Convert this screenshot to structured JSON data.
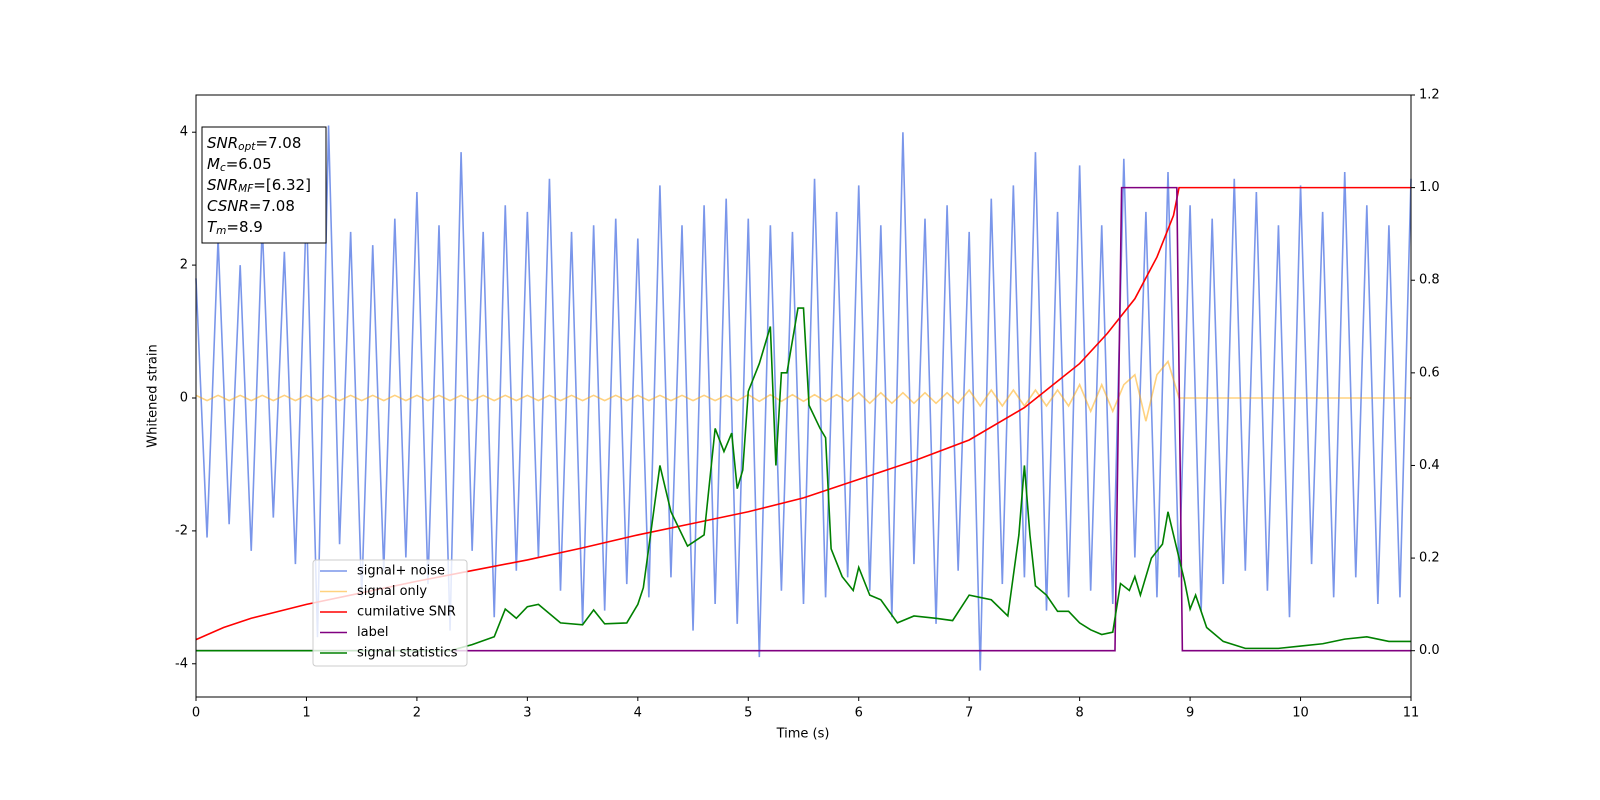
{
  "chart_data": {
    "type": "line",
    "xlabel": "Time (s)",
    "ylabel": "Whitened strain",
    "xlim": [
      0,
      11
    ],
    "xticks": [
      0,
      1,
      2,
      3,
      4,
      5,
      6,
      7,
      8,
      9,
      10,
      11
    ],
    "ylim": [
      -4.5,
      4.56
    ],
    "yticks": [
      -4,
      -2,
      0,
      2,
      4
    ],
    "y2lim": [
      -0.1,
      1.2
    ],
    "y2ticks": [
      {
        "value": 0,
        "label": "0.0"
      },
      0.2,
      0.4,
      0.6,
      0.8,
      {
        "value": 1,
        "label": "1.0"
      },
      1.2
    ],
    "legend": "lower left",
    "annotation": [
      {
        "main": "SNR",
        "sub": "opt",
        "rest": "=7.08"
      },
      {
        "main": "M",
        "sub": "c",
        "rest": "=6.05"
      },
      {
        "main": "SNR",
        "sub": "MF",
        "rest": "=[6.32]"
      },
      {
        "main": "CSNR",
        "sub": null,
        "rest": "=7.08"
      },
      {
        "main": "T",
        "sub": "m",
        "rest": "=8.9"
      }
    ],
    "x": [
      0,
      0.1,
      0.2,
      0.3,
      0.4,
      0.5,
      0.6,
      0.7,
      0.8,
      0.9,
      1,
      1.1,
      1.2,
      1.3,
      1.4,
      1.5,
      1.6,
      1.7,
      1.8,
      1.9,
      2,
      2.1,
      2.2,
      2.3,
      2.4,
      2.5,
      2.6,
      2.7,
      2.8,
      2.9,
      3,
      3.1,
      3.2,
      3.3,
      3.4,
      3.5,
      3.6,
      3.7,
      3.8,
      3.9,
      4,
      4.1,
      4.2,
      4.3,
      4.4,
      4.5,
      4.6,
      4.7,
      4.8,
      4.9,
      5,
      5.1,
      5.2,
      5.3,
      5.4,
      5.5,
      5.6,
      5.7,
      5.8,
      5.9,
      6,
      6.1,
      6.2,
      6.3,
      6.4,
      6.5,
      6.6,
      6.7,
      6.8,
      6.9,
      7,
      7.1,
      7.2,
      7.3,
      7.4,
      7.5,
      7.6,
      7.7,
      7.8,
      7.9,
      8,
      8.1,
      8.2,
      8.3,
      8.4,
      8.5,
      8.6,
      8.7,
      8.8,
      8.9,
      9,
      9.1,
      9.2,
      9.3,
      9.4,
      9.5,
      9.6,
      9.7,
      9.8,
      9.9,
      10,
      10.1,
      10.2,
      10.3,
      10.4,
      10.5,
      10.6,
      10.7,
      10.8,
      10.9,
      11
    ],
    "series": [
      {
        "name": "signal+ noise",
        "color": "#4169e1",
        "alpha": 0.7,
        "values": [
          1.8,
          -2.1,
          2.4,
          -1.9,
          2.0,
          -2.3,
          2.6,
          -1.8,
          2.2,
          -2.5,
          2.9,
          -3.6,
          4.1,
          -2.2,
          2.5,
          -3.0,
          2.3,
          -2.6,
          2.7,
          -2.4,
          3.1,
          -2.8,
          2.6,
          -3.5,
          3.7,
          -2.3,
          2.5,
          -3.3,
          2.9,
          -2.6,
          2.8,
          -2.4,
          3.3,
          -2.9,
          2.5,
          -3.4,
          2.6,
          -3.2,
          2.7,
          -2.8,
          2.4,
          -3.0,
          3.2,
          -2.7,
          2.6,
          -3.5,
          2.9,
          -3.1,
          3.0,
          -3.4,
          2.7,
          -3.9,
          2.6,
          -2.9,
          2.5,
          -3.1,
          3.3,
          -3.0,
          2.8,
          -2.7,
          3.2,
          -2.9,
          2.6,
          -3.3,
          4.0,
          -2.5,
          2.7,
          -3.4,
          2.9,
          -2.6,
          2.5,
          -4.1,
          3.0,
          -2.8,
          3.2,
          -2.7,
          3.7,
          -3.2,
          2.8,
          -3.0,
          3.5,
          -2.9,
          2.6,
          -3.1,
          3.6,
          -2.4,
          2.8,
          -3.0,
          3.4,
          -2.7,
          2.9,
          -3.2,
          2.7,
          -2.8,
          3.3,
          -2.6,
          3.1,
          -2.9,
          2.6,
          -3.3,
          3.2,
          -2.5,
          2.8,
          -3.0,
          3.4,
          -2.7,
          2.9,
          -3.1,
          2.6,
          -3.0,
          3.3
        ]
      },
      {
        "name": "signal only",
        "color": "orange",
        "alpha": 0.5,
        "values": [
          0.04,
          -0.04,
          0.04,
          -0.04,
          0.04,
          -0.04,
          0.04,
          -0.04,
          0.04,
          -0.04,
          0.04,
          -0.04,
          0.04,
          -0.04,
          0.04,
          -0.04,
          0.04,
          -0.04,
          0.04,
          -0.04,
          0.04,
          -0.04,
          0.04,
          -0.04,
          0.04,
          -0.04,
          0.04,
          -0.04,
          0.04,
          -0.04,
          0.04,
          -0.04,
          0.04,
          -0.04,
          0.04,
          -0.04,
          0.04,
          -0.04,
          0.04,
          -0.04,
          0.04,
          -0.04,
          0.04,
          -0.04,
          0.04,
          -0.04,
          0.04,
          -0.04,
          0.04,
          -0.04,
          0.05,
          -0.05,
          0.05,
          -0.05,
          0.05,
          -0.05,
          0.05,
          -0.05,
          0.05,
          -0.05,
          0.08,
          -0.08,
          0.08,
          -0.08,
          0.08,
          -0.08,
          0.08,
          -0.08,
          0.08,
          -0.08,
          0.12,
          -0.12,
          0.12,
          -0.12,
          0.12,
          -0.12,
          0.12,
          -0.12,
          0.12,
          -0.12,
          0.2,
          -0.2,
          0.2,
          -0.2,
          0.2,
          0.35,
          -0.35,
          0.35,
          0.55,
          0,
          0,
          0,
          0,
          0,
          0,
          0,
          0,
          0,
          0,
          0,
          0,
          0,
          0,
          0,
          0,
          0,
          0,
          0,
          0,
          0,
          0
        ]
      },
      {
        "name": "cumilative SNR",
        "color": "red",
        "axis": "y2",
        "x": [
          0,
          0.25,
          0.5,
          1,
          1.5,
          2,
          2.5,
          3,
          3.5,
          4,
          4.5,
          5,
          5.5,
          6,
          6.5,
          7,
          7.5,
          8,
          8.25,
          8.5,
          8.7,
          8.85,
          8.9,
          9,
          10,
          11
        ],
        "values": [
          0.024,
          0.05,
          0.07,
          0.1,
          0.125,
          0.15,
          0.173,
          0.196,
          0.222,
          0.25,
          0.275,
          0.3,
          0.33,
          0.37,
          0.41,
          0.455,
          0.525,
          0.62,
          0.685,
          0.76,
          0.85,
          0.94,
          1.0,
          1.0,
          1.0,
          1.0
        ]
      },
      {
        "name": "label",
        "color": "purple",
        "axis": "y2",
        "x": [
          0,
          8.32,
          8.38,
          8.88,
          8.93,
          11
        ],
        "values": [
          0,
          0,
          1,
          1,
          0,
          0
        ]
      },
      {
        "name": "signal statistics",
        "color": "green",
        "axis": "y2",
        "x": [
          0,
          0.5,
          1,
          1.5,
          2,
          2.3,
          2.5,
          2.7,
          2.8,
          2.9,
          3.0,
          3.1,
          3.3,
          3.5,
          3.6,
          3.7,
          3.9,
          4.0,
          4.05,
          4.2,
          4.3,
          4.45,
          4.6,
          4.7,
          4.78,
          4.85,
          4.9,
          4.95,
          5.0,
          5.1,
          5.2,
          5.25,
          5.3,
          5.35,
          5.45,
          5.5,
          5.55,
          5.65,
          5.7,
          5.75,
          5.85,
          5.95,
          6.0,
          6.1,
          6.2,
          6.35,
          6.5,
          6.7,
          6.85,
          7.0,
          7.1,
          7.2,
          7.35,
          7.45,
          7.5,
          7.55,
          7.6,
          7.7,
          7.8,
          7.9,
          8.0,
          8.1,
          8.2,
          8.3,
          8.37,
          8.45,
          8.5,
          8.55,
          8.65,
          8.75,
          8.8,
          8.9,
          8.95,
          9.0,
          9.05,
          9.15,
          9.3,
          9.5,
          9.8,
          10.0,
          10.2,
          10.4,
          10.6,
          10.8,
          11.0
        ],
        "values": [
          0,
          0,
          0,
          0,
          0,
          0,
          0.013,
          0.03,
          0.09,
          0.07,
          0.095,
          0.1,
          0.06,
          0.056,
          0.088,
          0.058,
          0.06,
          0.1,
          0.136,
          0.4,
          0.3,
          0.226,
          0.25,
          0.48,
          0.43,
          0.47,
          0.35,
          0.39,
          0.56,
          0.62,
          0.7,
          0.4,
          0.6,
          0.6,
          0.74,
          0.74,
          0.53,
          0.48,
          0.46,
          0.22,
          0.16,
          0.13,
          0.18,
          0.12,
          0.11,
          0.06,
          0.075,
          0.07,
          0.065,
          0.12,
          0.115,
          0.11,
          0.075,
          0.25,
          0.4,
          0.25,
          0.14,
          0.12,
          0.085,
          0.085,
          0.06,
          0.045,
          0.035,
          0.04,
          0.145,
          0.13,
          0.16,
          0.12,
          0.2,
          0.23,
          0.3,
          0.2,
          0.15,
          0.09,
          0.12,
          0.05,
          0.02,
          0.005,
          0.005,
          0.01,
          0.015,
          0.025,
          0.03,
          0.02,
          0.02
        ]
      }
    ]
  }
}
